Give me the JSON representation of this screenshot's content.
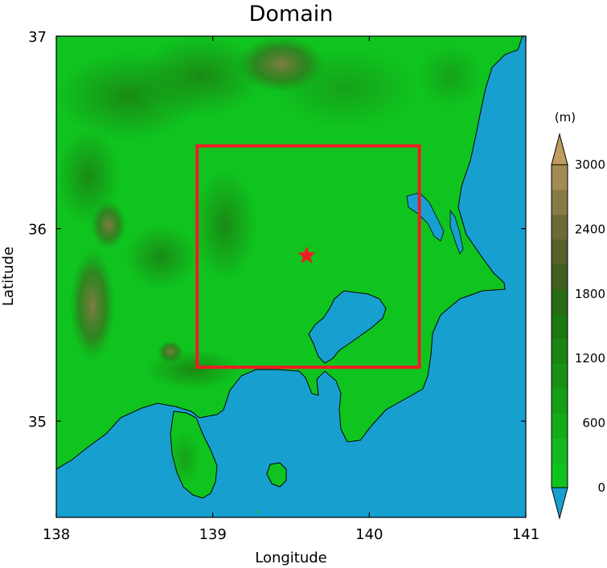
{
  "title": "Domain",
  "map": {
    "xlabel": "Longitude",
    "ylabel": "Latitude",
    "lon_range": [
      138,
      141
    ],
    "lat_range": [
      34.5,
      37
    ],
    "x_ticks": [
      {
        "value": 138,
        "label": "138"
      },
      {
        "value": 139,
        "label": "139"
      },
      {
        "value": 140,
        "label": "140"
      },
      {
        "value": 141,
        "label": "141"
      }
    ],
    "y_ticks": [
      {
        "value": 35,
        "label": "35"
      },
      {
        "value": 36,
        "label": "36"
      },
      {
        "value": 37,
        "label": "37"
      }
    ],
    "land_color": "#0fc41f",
    "ocean_color": "#17a0cf",
    "inner_domain": {
      "lon_min": 138.9,
      "lon_max": 140.32,
      "lat_min": 35.28,
      "lat_max": 36.43,
      "color": "#ee1c24"
    },
    "marker": {
      "lon": 139.6,
      "lat": 35.86,
      "color": "#ee1c24",
      "icon": "star-icon"
    }
  },
  "colorbar": {
    "unit_label": "(m)",
    "levels": [
      {
        "color": "#17a0cf"
      },
      {
        "color": "#0fc41f"
      },
      {
        "color": "#12b81c"
      },
      {
        "color": "#14ab19"
      },
      {
        "color": "#169e17"
      },
      {
        "color": "#189115"
      },
      {
        "color": "#1a8413"
      },
      {
        "color": "#1c7711"
      },
      {
        "color": "#286b16"
      },
      {
        "color": "#3f5f1f"
      },
      {
        "color": "#55602a"
      },
      {
        "color": "#6b6b35"
      },
      {
        "color": "#877a45"
      },
      {
        "color": "#a48b55"
      },
      {
        "color": "#c19c60"
      }
    ],
    "tick_labels": [
      {
        "value": 0,
        "label": "0"
      },
      {
        "value": 600,
        "label": "600"
      },
      {
        "value": 1200,
        "label": "1200"
      },
      {
        "value": 1800,
        "label": "1800"
      },
      {
        "value": 2400,
        "label": "2400"
      },
      {
        "value": 3000,
        "label": "3000"
      }
    ]
  }
}
